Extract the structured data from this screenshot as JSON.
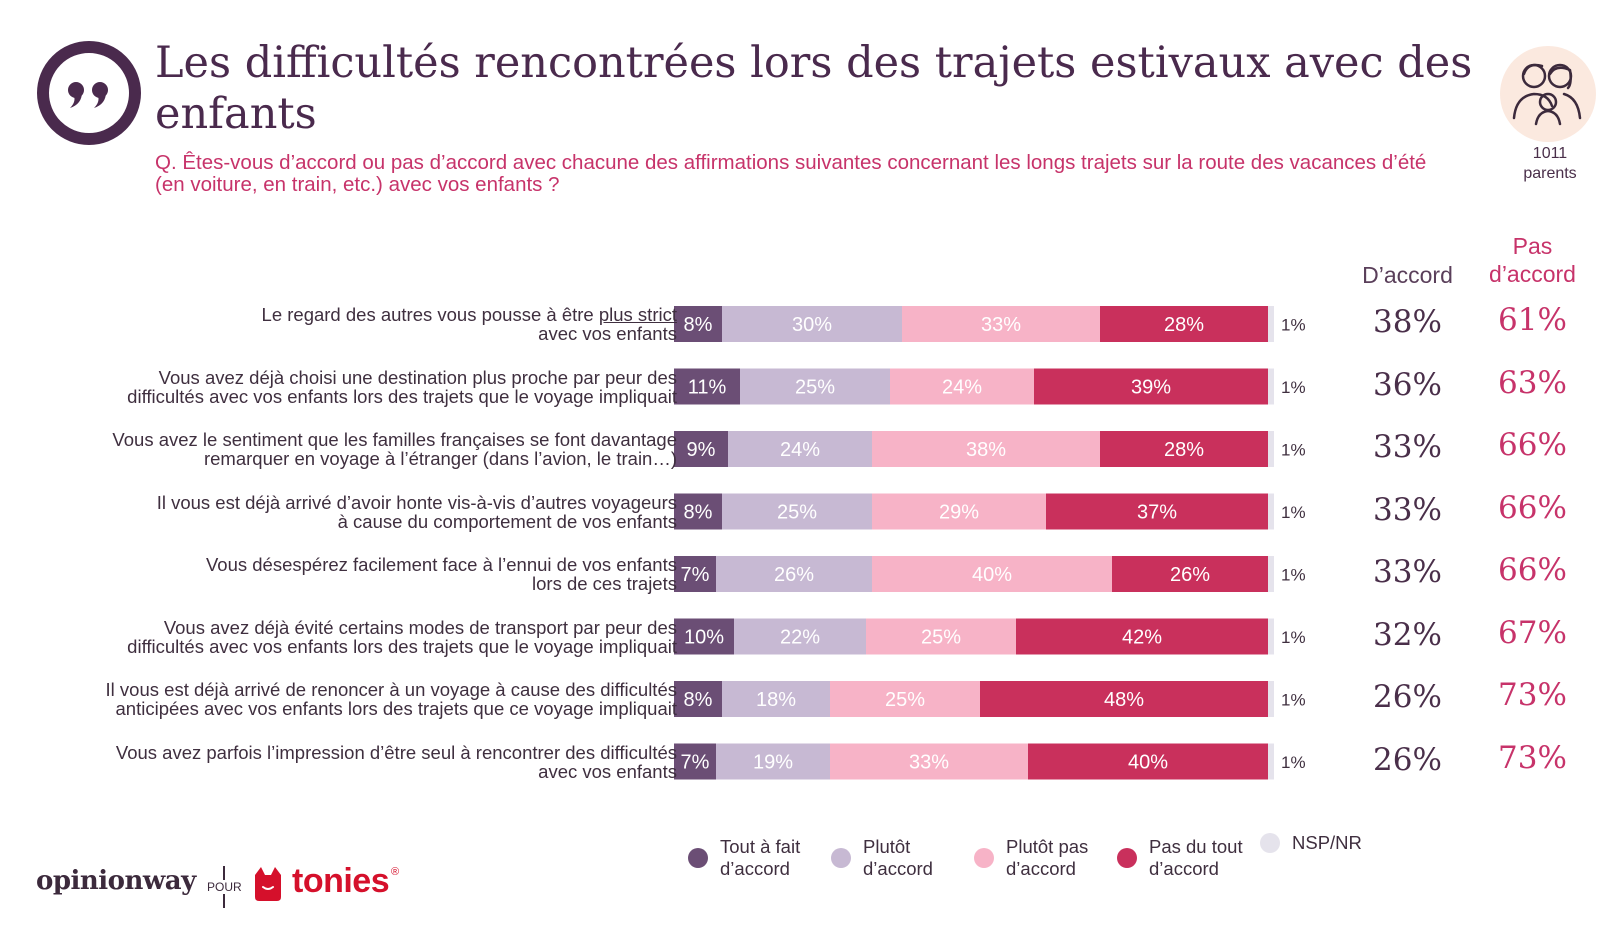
{
  "title": "Les difficultés rencontrées lors des trajets estivaux avec des enfants",
  "subtitle": "Q. Êtes-vous d’accord ou pas d’accord avec chacune des affirmations suivantes concernant les longs trajets sur la route des vacances d’été (en voiture, en train, etc.) avec vos enfants ?",
  "sample": {
    "count": "1011",
    "label": "parents"
  },
  "columns": {
    "agree": "D’accord",
    "disagree_line1": "Pas",
    "disagree_line2": "d’accord"
  },
  "colors": {
    "tout_a_fait": "#6b4e75",
    "plutot": "#c7b9d3",
    "plutot_pas": "#f7b3c7",
    "pas_du_tout": "#c9305c",
    "nsp": "#e5e3ec",
    "title": "#4a2a4d",
    "accent": "#c7336a"
  },
  "chart_data": {
    "type": "bar",
    "stacked": true,
    "orientation": "horizontal",
    "unit": "%",
    "categories": [
      "Le regard des autres vous pousse à être plus strict avec vos enfants",
      "Vous avez déjà choisi une destination plus proche par peur des difficultés avec vos enfants lors des trajets que le voyage impliquait",
      "Vous avez le sentiment que les familles françaises se font davantage remarquer en voyage à l’étranger (dans l’avion, le train…)",
      "Il vous est déjà arrivé d’avoir honte vis-à-vis d’autres voyageurs à cause du comportement de vos enfants",
      "Vous désespérez facilement face à l’ennui de vos enfants lors de ces trajets",
      "Vous avez déjà évité certains modes de transport par peur des difficultés avec vos enfants lors des trajets que le voyage impliquait",
      "Il vous est déjà arrivé de renoncer à un voyage à cause des difficultés anticipées avec vos enfants lors des trajets que ce voyage impliquait",
      "Vous avez parfois l’impression d’être seul à rencontrer des difficultés avec vos enfants"
    ],
    "label_lines": [
      [
        "Le regard des autres vous pousse à être plus strict",
        "avec vos enfants"
      ],
      [
        "Vous avez déjà choisi une destination plus proche par peur des",
        "difficultés avec vos enfants lors des trajets que le voyage impliquait"
      ],
      [
        "Vous avez le sentiment que les familles françaises se font davantage",
        "remarquer en voyage à l’étranger (dans l’avion, le train…)"
      ],
      [
        "Il vous est déjà arrivé d’avoir honte vis-à-vis d’autres voyageurs",
        "à cause du comportement de vos enfants"
      ],
      [
        "Vous désespérez facilement face à l’ennui de vos enfants",
        "lors de ces trajets"
      ],
      [
        "Vous avez déjà évité certains modes de transport par peur des",
        "difficultés avec vos enfants lors des trajets que le voyage impliquait"
      ],
      [
        "Il vous est déjà arrivé de renoncer à un voyage à cause des difficultés",
        "anticipées avec vos enfants lors des trajets que ce voyage impliquait"
      ],
      [
        "Vous avez parfois l’impression d’être seul à rencontrer des difficultés",
        "avec vos enfants"
      ]
    ],
    "series": [
      {
        "name": "Tout à fait d’accord",
        "values": [
          8,
          11,
          9,
          8,
          7,
          10,
          8,
          7
        ]
      },
      {
        "name": "Plutôt d’accord",
        "values": [
          30,
          25,
          24,
          25,
          26,
          22,
          18,
          19
        ]
      },
      {
        "name": "Plutôt pas d’accord",
        "values": [
          33,
          24,
          38,
          29,
          40,
          25,
          25,
          33
        ]
      },
      {
        "name": "Pas du tout d’accord",
        "values": [
          28,
          39,
          28,
          37,
          26,
          42,
          48,
          40
        ]
      },
      {
        "name": "NSP/NR",
        "values": [
          1,
          1,
          1,
          1,
          1,
          1,
          1,
          1
        ]
      }
    ],
    "totals": {
      "agree": [
        "38%",
        "36%",
        "33%",
        "33%",
        "33%",
        "32%",
        "26%",
        "26%"
      ],
      "disagree": [
        "61%",
        "63%",
        "66%",
        "66%",
        "66%",
        "67%",
        "73%",
        "73%"
      ]
    },
    "legend": [
      {
        "line1": "Tout à fait",
        "line2": "d’accord"
      },
      {
        "line1": "Plutôt",
        "line2": "d’accord"
      },
      {
        "line1": "Plutôt pas",
        "line2": "d’accord"
      },
      {
        "line1": "Pas du tout",
        "line2": "d’accord"
      },
      {
        "line1": "NSP/NR",
        "line2": ""
      }
    ],
    "legend_position": "bottom"
  },
  "footer": {
    "brand1": "opinionway",
    "connector": "POUR",
    "brand2": "tonies",
    "reg": "®"
  }
}
